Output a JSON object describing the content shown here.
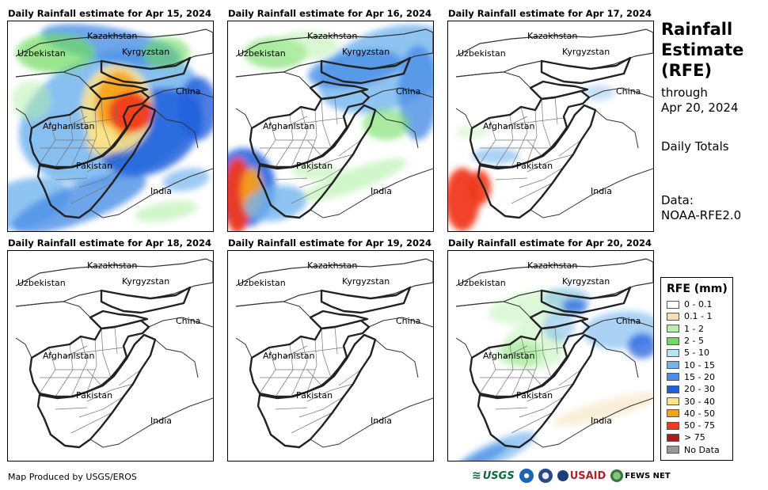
{
  "panels": [
    {
      "title": "Daily Rainfall estimate for Apr 15, 2024"
    },
    {
      "title": "Daily Rainfall estimate for Apr 16, 2024"
    },
    {
      "title": "Daily Rainfall estimate for Apr 17, 2024"
    },
    {
      "title": "Daily Rainfall estimate for Apr 18, 2024"
    },
    {
      "title": "Daily Rainfall estimate for Apr 19, 2024"
    },
    {
      "title": "Daily Rainfall estimate for Apr 20, 2024"
    }
  ],
  "place_labels": {
    "kazakhstan": "Kazakhstan",
    "uzbekistan": "Uzbekistan",
    "kyrgyzstan": "Kyrgyzstan",
    "china": "China",
    "afghanistan": "Afghanistan",
    "pakistan": "Pakistan",
    "india": "India"
  },
  "side": {
    "title_line1": "Rainfall",
    "title_line2": "Estimate",
    "title_line3": "(RFE)",
    "through_label": "through",
    "through_date": "Apr 20, 2024",
    "totals_label": "Daily Totals",
    "data_label": "Data:",
    "data_source": "NOAA-RFE2.0"
  },
  "legend": {
    "title": "RFE (mm)",
    "items": [
      {
        "label": "0 - 0.1",
        "color": "#ffffff"
      },
      {
        "label": "0.1 - 1",
        "color": "#f5deb3"
      },
      {
        "label": "1 - 2",
        "color": "#b3f0a8"
      },
      {
        "label": "2 - 5",
        "color": "#6fdc5f"
      },
      {
        "label": "5 - 10",
        "color": "#b2e6f7"
      },
      {
        "label": "10 - 15",
        "color": "#73b4ee"
      },
      {
        "label": "15 - 20",
        "color": "#4a8fe6"
      },
      {
        "label": "20 - 30",
        "color": "#1f5fdc"
      },
      {
        "label": "30 - 40",
        "color": "#fbe38a"
      },
      {
        "label": "40 - 50",
        "color": "#f7a21b"
      },
      {
        "label": "50 - 75",
        "color": "#f0391b"
      },
      {
        "label": "> 75",
        "color": "#a81d1d"
      },
      {
        "label": "No Data",
        "color": "#999999"
      }
    ]
  },
  "credit": "Map Produced by USGS/EROS",
  "logos": {
    "usgs": "USGS",
    "usaid": "USAID",
    "fewsnet": "FEWS NET"
  }
}
